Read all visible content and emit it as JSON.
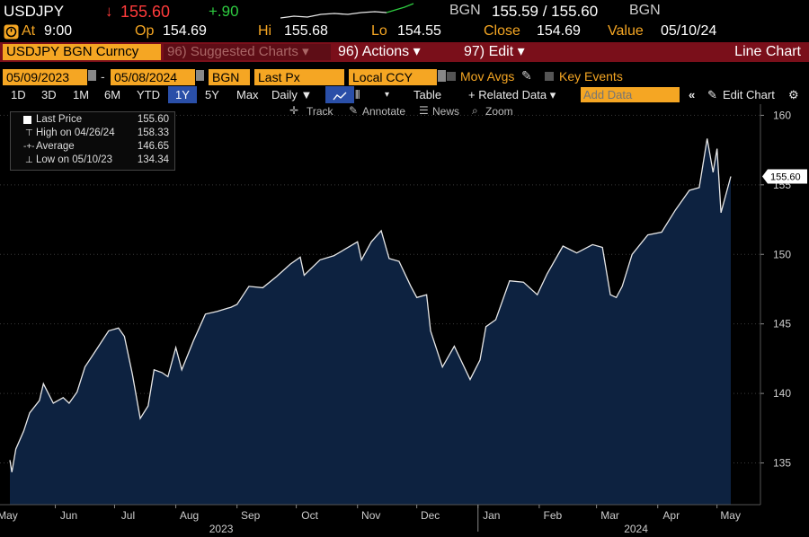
{
  "header": {
    "ticker": "USDJPY",
    "arrow": "↓",
    "last": "155.60",
    "change": "+.90",
    "src1": "BGN",
    "bid_ask": "155.59 / 155.60",
    "src2": "BGN"
  },
  "quote": {
    "at_label": "At",
    "at_value": "9:00",
    "op_label": "Op",
    "op_value": "154.69",
    "hi_label": "Hi",
    "hi_value": "155.68",
    "lo_label": "Lo",
    "lo_value": "154.55",
    "close_label": "Close",
    "close_value": "154.69",
    "value_label": "Value",
    "value_date": "05/10/24"
  },
  "menubar": {
    "security": "USDJPY BGN Curncy",
    "suggested": "96) Suggested Charts ▾",
    "actions": "96) Actions ▾",
    "edit": "97) Edit ▾",
    "chart_type": "Line Chart"
  },
  "settings": {
    "start": "05/09/2023",
    "end": "05/08/2024",
    "source": "BGN",
    "field": "Last Px",
    "currency": "Local CCY",
    "mov_avgs": "Mov Avgs",
    "key_events": "Key Events"
  },
  "toolbar": {
    "periods": [
      "1D",
      "3D",
      "1M",
      "6M",
      "YTD",
      "1Y",
      "5Y",
      "Max"
    ],
    "active_period": "1Y",
    "frequency": "Daily ▼",
    "table": "Table",
    "related": "+ Related Data ▾",
    "add_data_placeholder": "Add Data",
    "edit_chart": "Edit Chart"
  },
  "tools": {
    "track": "Track",
    "annotate": "Annotate",
    "news": "News",
    "zoom": "Zoom"
  },
  "legend": [
    {
      "name": "Last Price",
      "value": "155.60"
    },
    {
      "name": "High on 04/26/24",
      "value": "158.33"
    },
    {
      "name": "Average",
      "value": "146.65"
    },
    {
      "name": "Low on 05/10/23",
      "value": "134.34"
    }
  ],
  "colors": {
    "background": "#000000",
    "area_fill": "#0d2240",
    "line": "#e8e8e8",
    "accent_orange": "#f5a623",
    "up_green": "#2ecc40",
    "down_red": "#ff3b3b",
    "bar_red": "#7a0f1a"
  },
  "chart_data": {
    "type": "area",
    "series": [
      {
        "name": "Last Price",
        "x": [
          "2023-05-09",
          "2023-05-10",
          "2023-05-12",
          "2023-05-16",
          "2023-05-19",
          "2023-05-24",
          "2023-05-26",
          "2023-05-31",
          "2023-06-05",
          "2023-06-08",
          "2023-06-12",
          "2023-06-16",
          "2023-06-22",
          "2023-06-28",
          "2023-07-03",
          "2023-07-06",
          "2023-07-10",
          "2023-07-14",
          "2023-07-18",
          "2023-07-21",
          "2023-07-25",
          "2023-07-28",
          "2023-08-01",
          "2023-08-04",
          "2023-08-10",
          "2023-08-16",
          "2023-08-22",
          "2023-08-29",
          "2023-09-01",
          "2023-09-07",
          "2023-09-14",
          "2023-09-21",
          "2023-09-28",
          "2023-10-03",
          "2023-10-05",
          "2023-10-13",
          "2023-10-20",
          "2023-10-26",
          "2023-11-01",
          "2023-11-03",
          "2023-11-08",
          "2023-11-13",
          "2023-11-17",
          "2023-11-22",
          "2023-11-28",
          "2023-12-01",
          "2023-12-06",
          "2023-12-08",
          "2023-12-14",
          "2023-12-20",
          "2023-12-28",
          "2024-01-02",
          "2024-01-05",
          "2024-01-10",
          "2024-01-17",
          "2024-01-24",
          "2024-01-31",
          "2024-02-05",
          "2024-02-13",
          "2024-02-20",
          "2024-02-28",
          "2024-03-04",
          "2024-03-08",
          "2024-03-11",
          "2024-03-14",
          "2024-03-19",
          "2024-03-27",
          "2024-04-03",
          "2024-04-10",
          "2024-04-17",
          "2024-04-22",
          "2024-04-26",
          "2024-04-29",
          "2024-05-01",
          "2024-05-03",
          "2024-05-08"
        ],
        "values": [
          135.2,
          134.34,
          136.0,
          137.3,
          138.6,
          139.5,
          140.7,
          139.3,
          139.7,
          139.3,
          140.1,
          141.9,
          143.2,
          144.5,
          144.7,
          144.1,
          141.4,
          138.2,
          139.1,
          141.7,
          141.5,
          141.2,
          143.3,
          141.7,
          143.8,
          145.7,
          145.9,
          146.2,
          146.4,
          147.7,
          147.6,
          148.4,
          149.3,
          149.8,
          148.5,
          149.6,
          149.9,
          150.4,
          150.9,
          149.6,
          150.9,
          151.7,
          149.7,
          149.5,
          147.7,
          146.9,
          147.1,
          144.5,
          141.9,
          143.4,
          141.0,
          142.4,
          144.8,
          145.3,
          148.1,
          148.0,
          147.1,
          148.6,
          150.6,
          150.1,
          150.7,
          150.5,
          147.1,
          146.9,
          147.7,
          150.0,
          151.4,
          151.6,
          153.2,
          154.6,
          154.8,
          158.33,
          155.9,
          157.6,
          153.0,
          155.6
        ]
      }
    ],
    "ylim": [
      132,
      160.8
    ],
    "yticks": [
      135,
      140,
      145,
      150,
      155,
      160
    ],
    "x_month_labels": [
      "May",
      "Jun",
      "Jul",
      "Aug",
      "Sep",
      "Oct",
      "Nov",
      "Dec",
      "Jan",
      "Feb",
      "Mar",
      "Apr",
      "May"
    ],
    "x_month_dates": [
      "2023-05-01",
      "2023-06-01",
      "2023-07-01",
      "2023-08-01",
      "2023-09-01",
      "2023-10-01",
      "2023-11-01",
      "2023-12-01",
      "2024-01-01",
      "2024-02-01",
      "2024-03-01",
      "2024-04-01",
      "2024-05-01"
    ],
    "x_year_labels": [
      "2023",
      "2024"
    ],
    "x_year_dates": [
      "2023-08-24",
      "2024-03-21"
    ],
    "xlim": [
      "2023-05-04",
      "2024-05-23"
    ],
    "last_price_label": "155.60",
    "grid": true
  }
}
